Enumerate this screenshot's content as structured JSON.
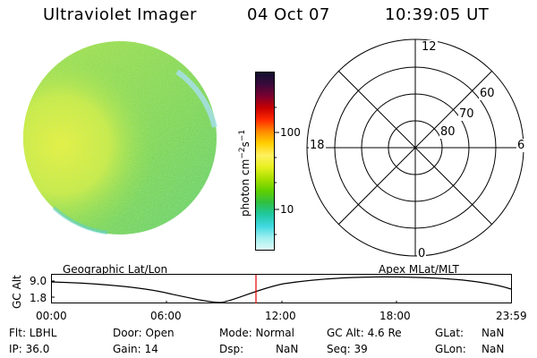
{
  "header": {
    "title": "Ultraviolet Imager",
    "date": "04 Oct 07",
    "time": "10:39:05 UT"
  },
  "colorbar": {
    "label": "photon cm",
    "label_exp1": "−2",
    "label_s": "s",
    "label_exp2": "−1",
    "ticks": [
      "100",
      "10"
    ],
    "colors": [
      "#101030",
      "#3a0a3a",
      "#7a0030",
      "#c80000",
      "#ff2a00",
      "#ff8a00",
      "#ffd000",
      "#fff060",
      "#e8f020",
      "#a8e000",
      "#60d000",
      "#30c040",
      "#20c8a0",
      "#40d8e0",
      "#a0f0f0",
      "#e0f8f8"
    ]
  },
  "polar": {
    "mlt_labels": {
      "top": "12",
      "bottom": "0",
      "left": "18",
      "right": "6"
    },
    "lat_labels": [
      "60",
      "70",
      "80"
    ]
  },
  "timeline": {
    "y_axis_title": "GC Alt",
    "y_ticks": [
      "9.0",
      "1.8"
    ],
    "left_caption": "Geographic Lat/Lon",
    "right_caption": "Apex  MLat/MLT",
    "x_ticks": [
      "00:00",
      "06:00",
      "12:00",
      "18:00",
      "23:59"
    ]
  },
  "info": {
    "row1": {
      "flt": "Flt: LBHL",
      "door": "Door: Open",
      "mode": "Mode:  Normal",
      "gcalt": "GC Alt:  4.6 Re",
      "glat_label": "GLat:",
      "glat_val": "NaN"
    },
    "row2": {
      "ip": "IP: 36.0",
      "gain": "Gain: 14",
      "dsp_label": "Dsp:",
      "dsp_val": "NaN",
      "seq": "Seq:  39",
      "glon_label": "GLon:",
      "glon_val": "NaN"
    }
  }
}
